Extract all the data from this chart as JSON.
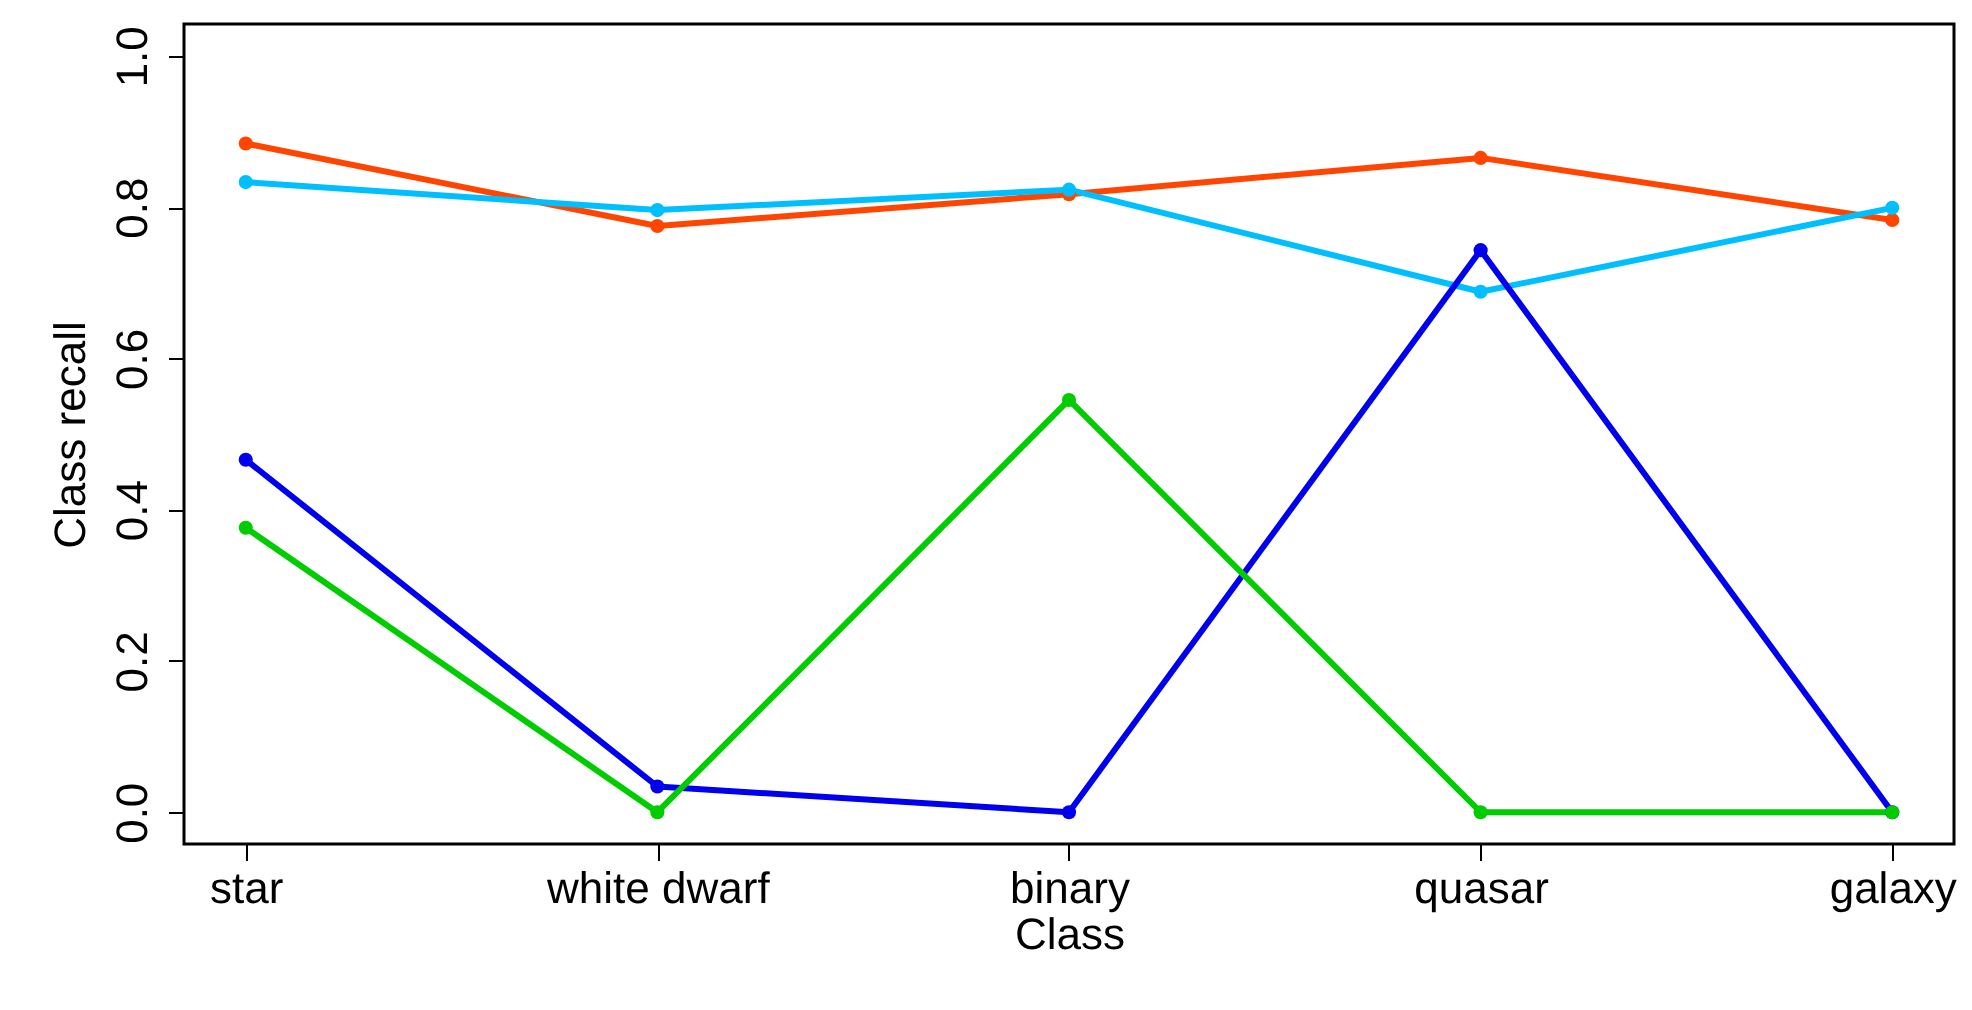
{
  "chart_data": {
    "type": "line",
    "xlabel": "Class",
    "ylabel": "Class recall",
    "categories": [
      "star",
      "white dwarf",
      "binary",
      "quasar",
      "galaxy"
    ],
    "series": [
      {
        "color": "#ff4500",
        "values": [
          0.884,
          0.775,
          0.817,
          0.865,
          0.783
        ]
      },
      {
        "color": "#00bfff",
        "values": [
          0.833,
          0.796,
          0.823,
          0.688,
          0.799
        ]
      },
      {
        "color": "#0000ee",
        "values": [
          0.466,
          0.034,
          0,
          0.743,
          0
        ]
      },
      {
        "color": "#00cd00",
        "values": [
          0.376,
          0,
          0.545,
          0,
          0
        ]
      }
    ],
    "ylim": [
      -0.042,
      1.042
    ],
    "yticks": [
      {
        "value": 0,
        "label": "0.0"
      },
      {
        "value": 0.2,
        "label": "0.2"
      },
      {
        "value": 0.4,
        "label": "0.4"
      },
      {
        "value": 0.6,
        "label": "0.6"
      },
      {
        "value": 0.8,
        "label": "0.8"
      },
      {
        "value": 1,
        "label": "1.0"
      }
    ],
    "grid": false,
    "marker": "circle",
    "line_style": "solid"
  }
}
